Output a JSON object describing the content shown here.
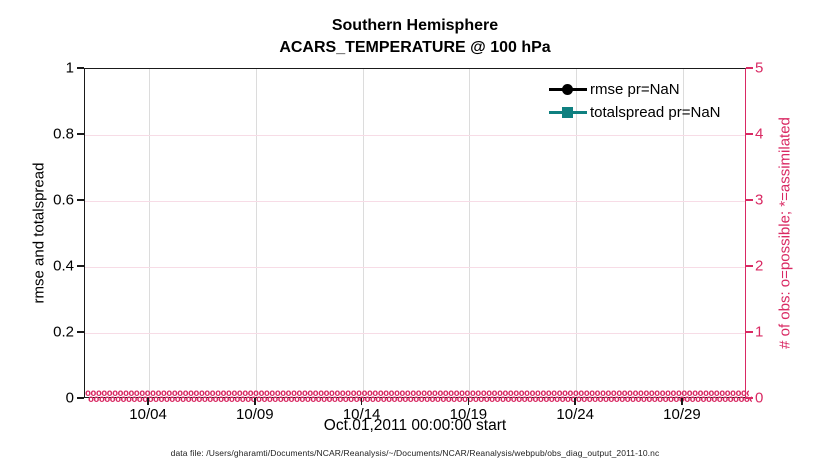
{
  "colors": {
    "pink": "#D92963",
    "teal": "#0F8080",
    "black": "#000000",
    "grid_gray": "#DCDCDC",
    "grid_pink": "#F7DCE6"
  },
  "chart_data": {
    "type": "line",
    "title": "Southern Hemisphere",
    "subtitle": "ACARS_TEMPERATURE @ 100 hPa",
    "xlabel": "Oct.01,2011 00:00:00 start",
    "ylabel_left": "rmse and totalspread",
    "ylabel_right": "# of obs: o=possible; *=assimilated",
    "ylim_left": [
      0,
      1
    ],
    "ylim_right": [
      0,
      5
    ],
    "x_start_day": 1,
    "x_total_days": 31,
    "xticks": [
      {
        "label": "10/04",
        "day": 4
      },
      {
        "label": "10/09",
        "day": 9
      },
      {
        "label": "10/14",
        "day": 14
      },
      {
        "label": "10/19",
        "day": 19
      },
      {
        "label": "10/24",
        "day": 24
      },
      {
        "label": "10/29",
        "day": 29
      }
    ],
    "yticks_left": [
      {
        "label": "0",
        "value": 0
      },
      {
        "label": "0.2",
        "value": 0.2
      },
      {
        "label": "0.4",
        "value": 0.4
      },
      {
        "label": "0.6",
        "value": 0.6
      },
      {
        "label": "0.8",
        "value": 0.8
      },
      {
        "label": "1",
        "value": 1
      }
    ],
    "yticks_right": [
      {
        "label": "0",
        "value": 0
      },
      {
        "label": "1",
        "value": 1
      },
      {
        "label": "2",
        "value": 2
      },
      {
        "label": "3",
        "value": 3
      },
      {
        "label": "4",
        "value": 4
      },
      {
        "label": "5",
        "value": 5
      }
    ],
    "grid": true,
    "series": [
      {
        "name": "rmse pr=NaN",
        "marker": "circle",
        "color_key": "black",
        "axis": "left",
        "values": null,
        "note": "all values NaN - no curve drawn"
      },
      {
        "name": "totalspread pr=NaN",
        "marker": "square",
        "color_key": "teal",
        "axis": "left",
        "values": null,
        "note": "all values NaN - no curve drawn"
      },
      {
        "name": "obs possible",
        "marker": "o",
        "color_key": "pink",
        "axis": "right",
        "constant_value": 0,
        "note": "dense band of o markers at y=0 across the full date range"
      }
    ],
    "legend": {
      "position": "top-right",
      "box": false,
      "entries": [
        "rmse pr=NaN",
        "totalspread pr=NaN"
      ]
    },
    "obs_band": {
      "marker": "o",
      "rows": 2,
      "repeat": 130
    },
    "footer": "data file: /Users/gharamti/Documents/NCAR/Reanalysis/~/Documents/NCAR/Reanalysis/webpub/obs_diag_output_2011-10.nc"
  }
}
